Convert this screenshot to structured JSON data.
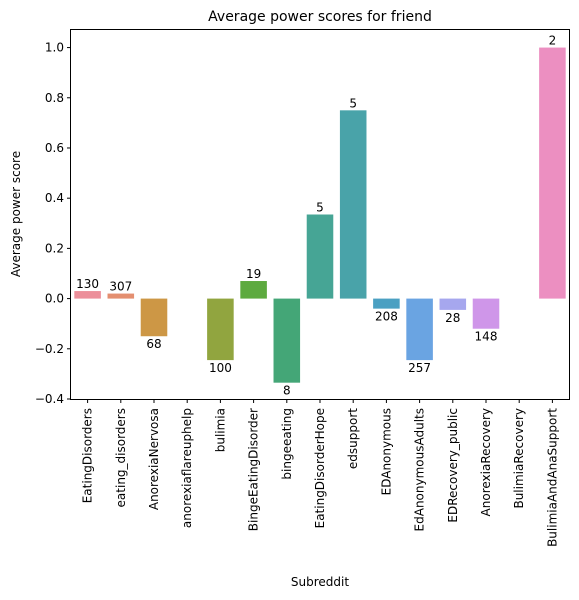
{
  "chart_data": {
    "type": "bar",
    "title": "Average power scores for friend",
    "xlabel": "Subreddit",
    "ylabel": "Average power score",
    "ylim": [
      -0.4,
      1.07
    ],
    "yticks": [
      -0.4,
      -0.2,
      0.0,
      0.2,
      0.4,
      0.6,
      0.8,
      1.0
    ],
    "ytick_labels": [
      "−0.4",
      "−0.2",
      "0.0",
      "0.2",
      "0.4",
      "0.6",
      "0.8",
      "1.0"
    ],
    "grid": false,
    "legend": "none",
    "categories": [
      "EatingDisorders",
      "eating_disorders",
      "AnorexiaNervosa",
      "anorexiaflareuphelp",
      "bulimia",
      "BingeEatingDisorder",
      "bingeeating",
      "EatingDisorderHope",
      "edsupport",
      "EDAnonymous",
      "EdAnonymousAdults",
      "EDRecovery_public",
      "AnorexiaRecovery",
      "BulimiaRecovery",
      "BulimiaAndAnaSupport"
    ],
    "values": [
      0.03,
      0.02,
      -0.15,
      null,
      -0.245,
      0.07,
      -0.335,
      0.335,
      0.75,
      -0.04,
      -0.245,
      -0.045,
      -0.12,
      null,
      1.0
    ],
    "labels": [
      "130",
      "307",
      "68",
      "",
      "100",
      "19",
      "8",
      "5",
      "5",
      "208",
      "257",
      "28",
      "148",
      "",
      "2"
    ],
    "colors": [
      "#ec8f9a",
      "#e48f70",
      "#cd9745",
      "#b69d3f",
      "#91a53f",
      "#5daa3f",
      "#44a677",
      "#46a595",
      "#49a3a9",
      "#4ba0c2",
      "#6aa4e2",
      "#a6a7ee",
      "#cf96e9",
      "#eb8fd4",
      "#ec8fc1"
    ]
  }
}
